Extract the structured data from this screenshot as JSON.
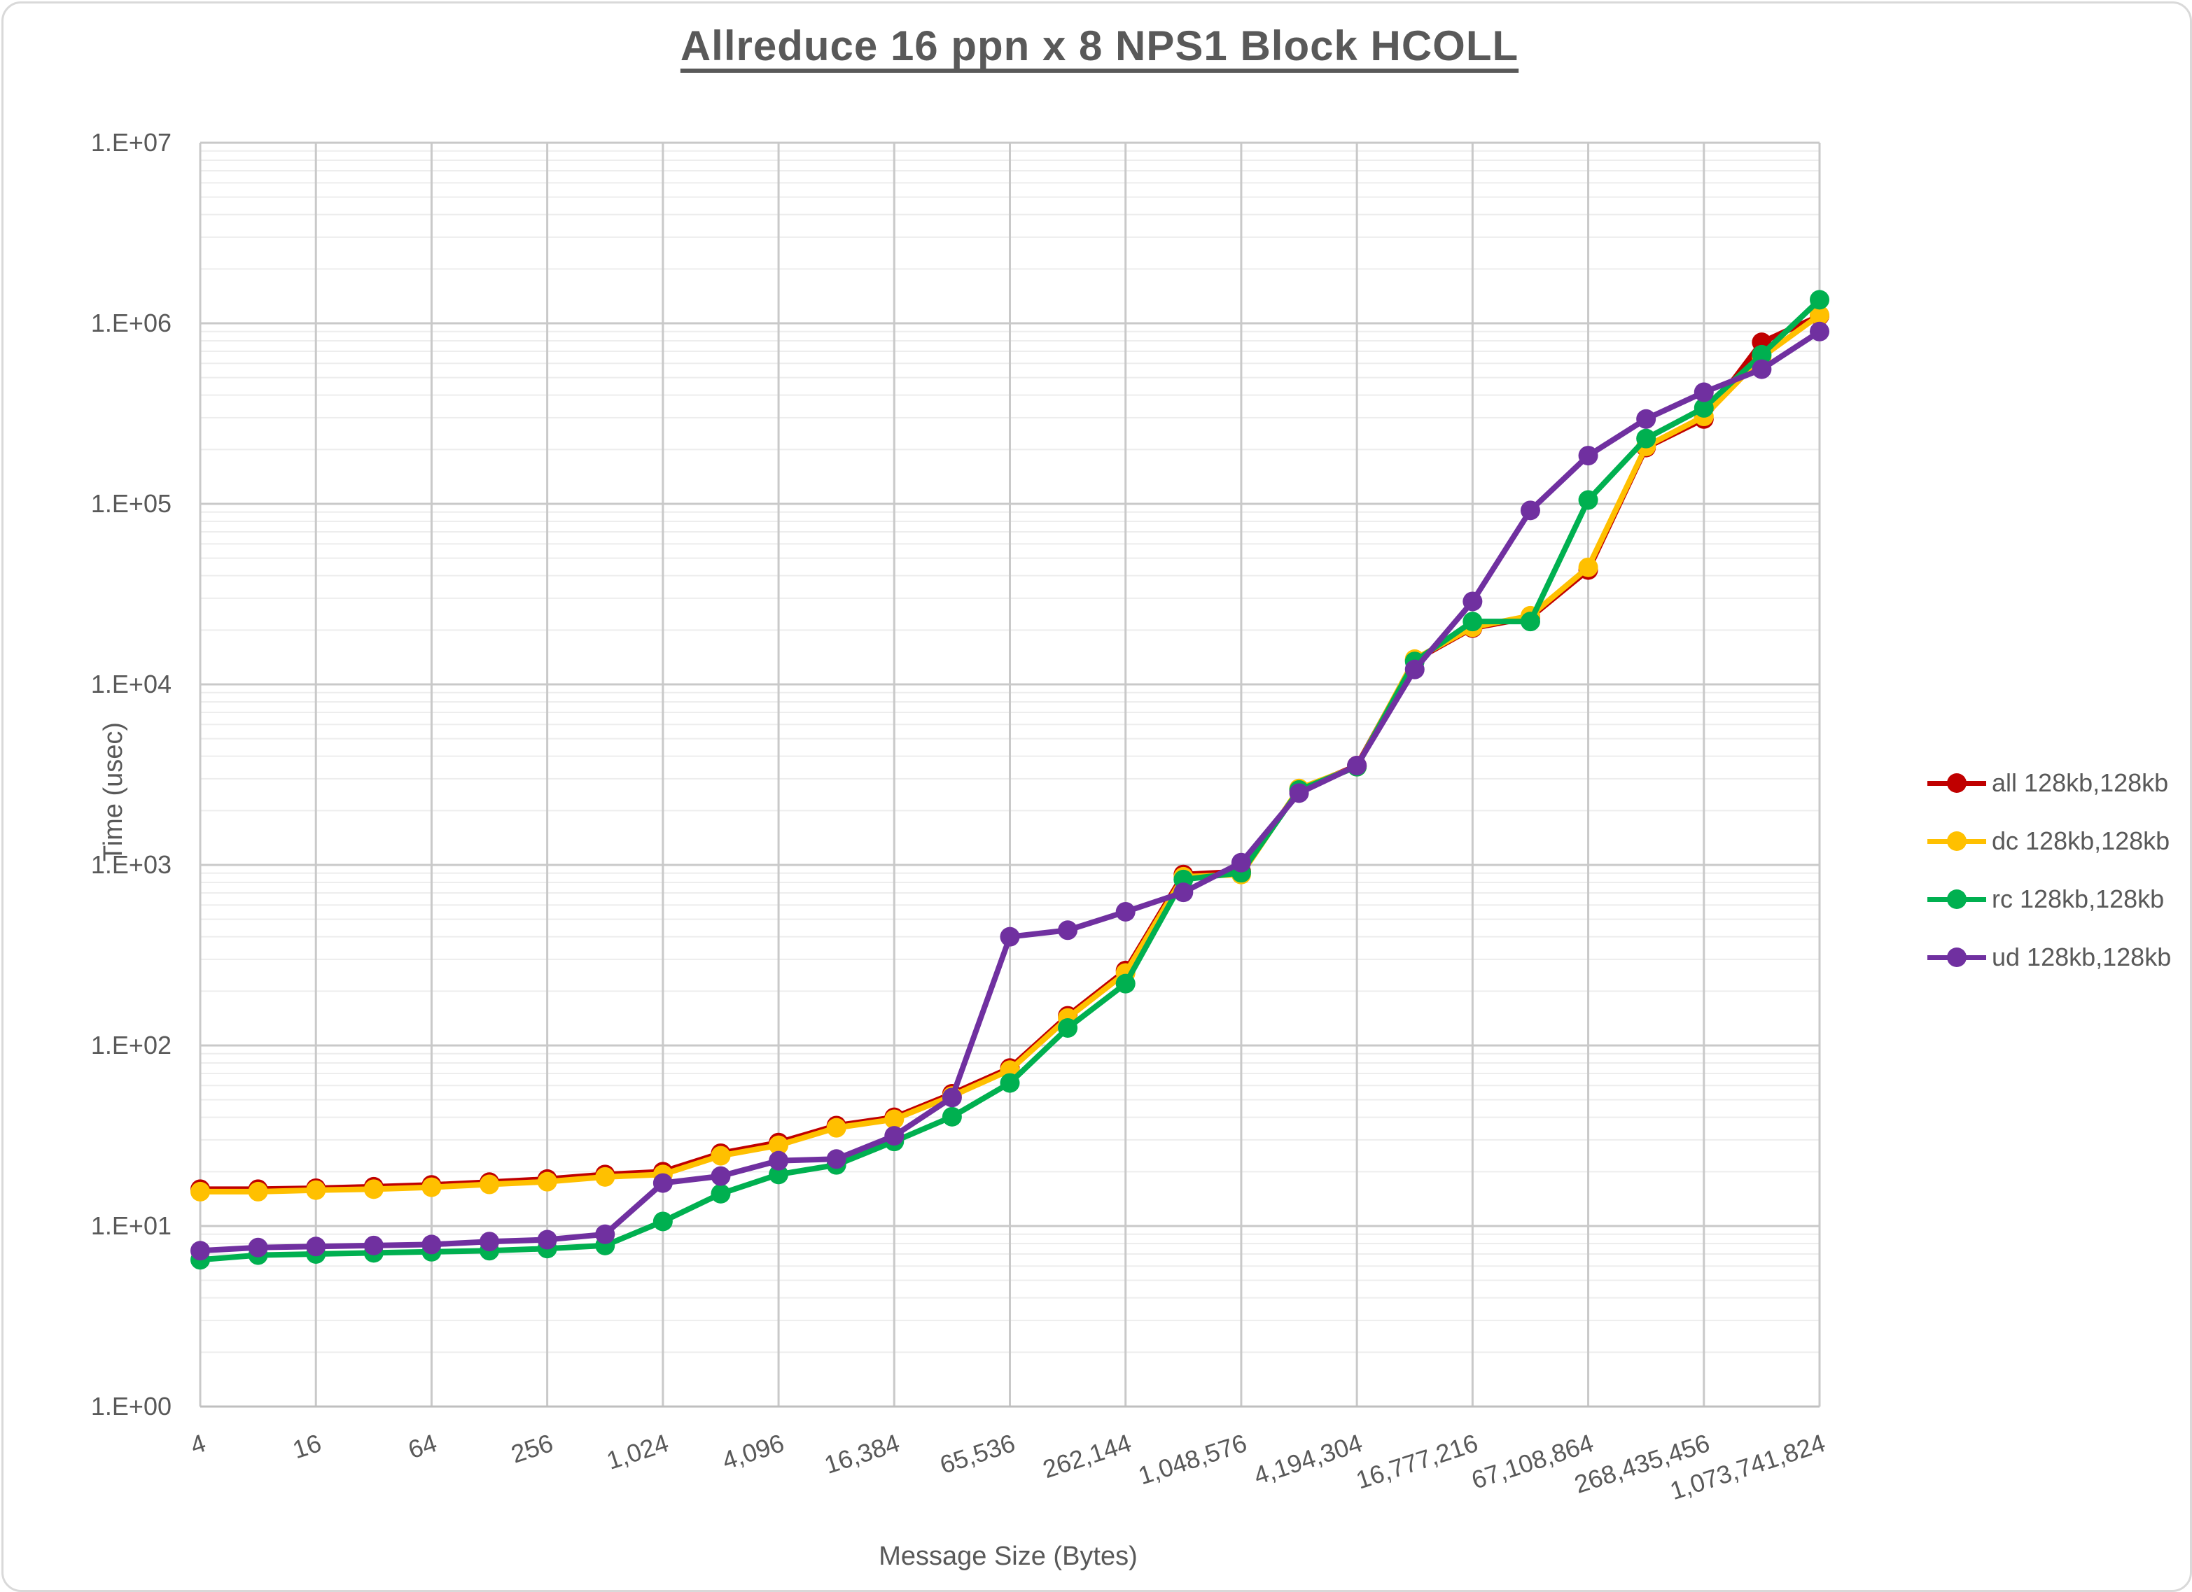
{
  "title": "Allreduce 16 ppn x 8 NPS1 Block HCOLL",
  "axes": {
    "x_label": "Message Size (Bytes)",
    "y_label": "Time (usec)",
    "y_tick_labels": [
      "1.E+00",
      "1.E+01",
      "1.E+02",
      "1.E+03",
      "1.E+04",
      "1.E+05",
      "1.E+06",
      "1.E+07"
    ]
  },
  "legend": [
    {
      "label": "all 128kb,128kb",
      "color": "#C00000"
    },
    {
      "label": "dc 128kb,128kb",
      "color": "#FFC000"
    },
    {
      "label": "rc 128kb,128kb",
      "color": "#00B050"
    },
    {
      "label": "ud 128kb,128kb",
      "color": "#7030A0"
    }
  ],
  "chart_data": {
    "type": "line",
    "title": "Allreduce 16 ppn x 8 NPS1 Block HCOLL",
    "xlabel": "Message Size (Bytes)",
    "ylabel": "Time (usec)",
    "x_scale": "log2 categories",
    "y_scale": "log10",
    "ylim": [
      1,
      10000000
    ],
    "grid": "major and minor log gridlines",
    "legend_position": "right",
    "x": [
      4,
      8,
      16,
      32,
      64,
      128,
      256,
      512,
      1024,
      2048,
      4096,
      8192,
      16384,
      32768,
      65536,
      131072,
      262144,
      524288,
      1048576,
      2097152,
      4194304,
      8388608,
      16777216,
      33554432,
      67108864,
      134217728,
      268435456,
      536870912,
      1073741824
    ],
    "x_tick_labels": [
      "4",
      "16",
      "64",
      "256",
      "1,024",
      "4,096",
      "16,384",
      "65,536",
      "262,144",
      "1,048,576",
      "4,194,304",
      "16,777,216",
      "67,108,864",
      "268,435,456",
      "1,073,741,824"
    ],
    "series": [
      {
        "name": "all 128kb,128kb",
        "color": "#C00000",
        "values": [
          16,
          16,
          16.2,
          16.5,
          16.9,
          17.5,
          18.2,
          19.3,
          20,
          25.3,
          29,
          36,
          40,
          54,
          75,
          146,
          260,
          885,
          920,
          2600,
          3550,
          13600,
          20500,
          23500,
          43000,
          205000,
          295000,
          785000,
          1100000
        ]
      },
      {
        "name": "dc 128kb,128kb",
        "color": "#FFC000",
        "values": [
          15.5,
          15.5,
          15.8,
          16,
          16.4,
          17,
          17.6,
          18.7,
          19.3,
          24.5,
          28,
          35,
          39,
          52.5,
          73,
          142,
          252,
          860,
          885,
          2650,
          3500,
          13800,
          20700,
          24000,
          44500,
          208000,
          305000,
          650000,
          1110000
        ]
      },
      {
        "name": "rc 128kb,128kb",
        "color": "#00B050",
        "values": [
          6.5,
          6.9,
          7,
          7.1,
          7.2,
          7.3,
          7.5,
          7.8,
          10.6,
          15.1,
          19.3,
          21.8,
          29.4,
          40.3,
          62,
          125,
          220,
          830,
          905,
          2600,
          3500,
          13400,
          22300,
          22300,
          105000,
          230000,
          340000,
          670000,
          1350000
        ]
      },
      {
        "name": "ud 128kb,128kb",
        "color": "#7030A0",
        "values": [
          7.3,
          7.6,
          7.7,
          7.8,
          7.9,
          8.2,
          8.4,
          9,
          17.3,
          18.9,
          23,
          23.5,
          31.6,
          51.5,
          400,
          435,
          550,
          705,
          1030,
          2500,
          3550,
          12100,
          28800,
          92000,
          185000,
          295000,
          415000,
          557000,
          900000
        ]
      }
    ]
  }
}
